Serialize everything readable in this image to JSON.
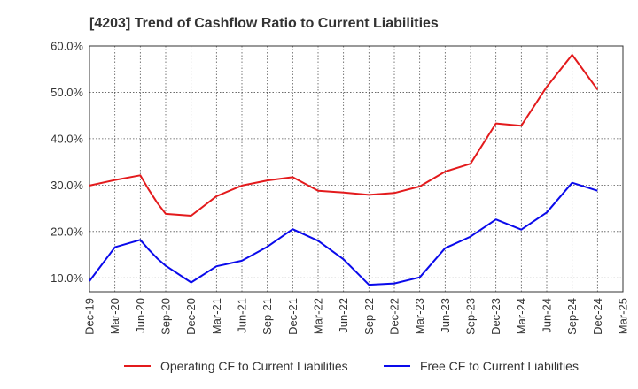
{
  "chart_data": {
    "type": "line",
    "title": "[4203]  Trend of Cashflow Ratio to Current Liabilities",
    "xlabel": "",
    "ylabel": "",
    "x_ticks": [
      "Dec-19",
      "Mar-20",
      "Jun-20",
      "Sep-20",
      "Dec-20",
      "Mar-21",
      "Jun-21",
      "Sep-21",
      "Dec-21",
      "Mar-22",
      "Jun-22",
      "Sep-22",
      "Dec-22",
      "Mar-23",
      "Jun-23",
      "Sep-23",
      "Dec-23",
      "Mar-24",
      "Jun-24",
      "Sep-24",
      "Dec-24",
      "Mar-25"
    ],
    "y_ticks": [
      "10.0%",
      "20.0%",
      "30.0%",
      "40.0%",
      "50.0%",
      "60.0%"
    ],
    "y_tick_values": [
      10,
      20,
      30,
      40,
      50,
      60
    ],
    "ylim": [
      7,
      60
    ],
    "grid": true,
    "legend_position": "bottom",
    "series": [
      {
        "name": "Operating CF to Current Liabilities",
        "color": "#e31a1c",
        "points": [
          [
            "Dec-19",
            29.9
          ],
          [
            "Mar-20",
            31.1
          ],
          [
            "Jun-20",
            32.1
          ],
          [
            "Jul-20",
            29.0
          ],
          [
            "Aug-20",
            26.2
          ],
          [
            "Sep-20",
            23.8
          ],
          [
            "Dec-20",
            23.4
          ],
          [
            "Mar-21",
            27.6
          ],
          [
            "Jun-21",
            29.9
          ],
          [
            "Sep-21",
            31.0
          ],
          [
            "Dec-21",
            31.7
          ],
          [
            "Mar-22",
            28.8
          ],
          [
            "Jun-22",
            28.4
          ],
          [
            "Sep-22",
            27.9
          ],
          [
            "Dec-22",
            28.3
          ],
          [
            "Mar-23",
            29.7
          ],
          [
            "Jun-23",
            32.9
          ],
          [
            "Sep-23",
            34.6
          ],
          [
            "Dec-23",
            43.3
          ],
          [
            "Mar-24",
            42.8
          ],
          [
            "Jun-24",
            51.2
          ],
          [
            "Sep-24",
            58.1
          ],
          [
            "Dec-24",
            50.6
          ]
        ]
      },
      {
        "name": "Free CF to Current Liabilities",
        "color": "#0a0aeb",
        "points": [
          [
            "Dec-19",
            9.3
          ],
          [
            "Mar-20",
            16.6
          ],
          [
            "Jun-20",
            18.2
          ],
          [
            "Jul-20",
            16.1
          ],
          [
            "Aug-20",
            14.2
          ],
          [
            "Sep-20",
            12.6
          ],
          [
            "Dec-20",
            9.0
          ],
          [
            "Mar-21",
            12.5
          ],
          [
            "Jun-21",
            13.7
          ],
          [
            "Sep-21",
            16.7
          ],
          [
            "Dec-21",
            20.5
          ],
          [
            "Mar-22",
            18.0
          ],
          [
            "Jun-22",
            14.0
          ],
          [
            "Sep-22",
            8.5
          ],
          [
            "Dec-22",
            8.8
          ],
          [
            "Mar-23",
            10.1
          ],
          [
            "Jun-23",
            16.4
          ],
          [
            "Sep-23",
            18.9
          ],
          [
            "Dec-23",
            22.6
          ],
          [
            "Mar-24",
            20.4
          ],
          [
            "Jun-24",
            24.1
          ],
          [
            "Sep-24",
            30.5
          ],
          [
            "Dec-24",
            28.8
          ]
        ]
      }
    ]
  }
}
